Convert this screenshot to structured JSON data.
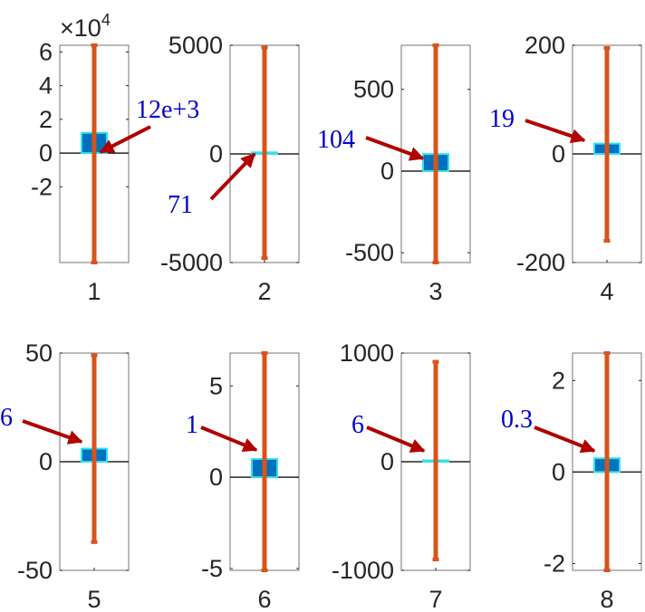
{
  "chart_data": [
    {
      "type": "bar",
      "panel": 1,
      "xlabel": "1",
      "bar_value": 12000,
      "annotation": "12e+3",
      "error_low": -65000,
      "error_high": 64000,
      "ylim": [
        -65000,
        64000
      ],
      "yticks": [
        -20000,
        0,
        20000,
        40000,
        60000
      ],
      "ytick_labels": [
        "-2",
        "0",
        "2",
        "4",
        "6"
      ],
      "exponent_label": "×10^4"
    },
    {
      "type": "bar",
      "panel": 2,
      "xlabel": "2",
      "bar_value": 71,
      "annotation": "71",
      "error_low": -4800,
      "error_high": 4900,
      "ylim": [
        -5000,
        5000
      ],
      "yticks": [
        -5000,
        0,
        5000
      ],
      "ytick_labels": [
        "-5000",
        "0",
        "5000"
      ]
    },
    {
      "type": "bar",
      "panel": 3,
      "xlabel": "3",
      "bar_value": 104,
      "annotation": "104",
      "error_low": -560,
      "error_high": 770,
      "ylim": [
        -560,
        770
      ],
      "yticks": [
        -500,
        0,
        500
      ],
      "ytick_labels": [
        "-500",
        "0",
        "500"
      ]
    },
    {
      "type": "bar",
      "panel": 4,
      "xlabel": "4",
      "bar_value": 19,
      "annotation": "19",
      "error_low": -160,
      "error_high": 195,
      "ylim": [
        -200,
        200
      ],
      "yticks": [
        -200,
        0,
        200
      ],
      "ytick_labels": [
        "-200",
        "0",
        "200"
      ]
    },
    {
      "type": "bar",
      "panel": 5,
      "xlabel": "5",
      "bar_value": 6,
      "annotation": "6",
      "error_low": -37,
      "error_high": 49,
      "ylim": [
        -50,
        50
      ],
      "yticks": [
        -50,
        0,
        50
      ],
      "ytick_labels": [
        "-50",
        "0",
        "50"
      ]
    },
    {
      "type": "bar",
      "panel": 6,
      "xlabel": "6",
      "bar_value": 1,
      "annotation": "1",
      "error_low": -5.1,
      "error_high": 6.8,
      "ylim": [
        -5.1,
        6.8
      ],
      "yticks": [
        -5,
        0,
        5
      ],
      "ytick_labels": [
        "-5",
        "0",
        "5"
      ]
    },
    {
      "type": "bar",
      "panel": 7,
      "xlabel": "7",
      "bar_value": 6,
      "annotation": "6",
      "error_low": -900,
      "error_high": 920,
      "ylim": [
        -1000,
        1000
      ],
      "yticks": [
        -1000,
        0,
        1000
      ],
      "ytick_labels": [
        "-1000",
        "0",
        "1000"
      ]
    },
    {
      "type": "bar",
      "panel": 8,
      "xlabel": "8",
      "bar_value": 0.3,
      "annotation": "0.3",
      "error_low": -2.15,
      "error_high": 2.6,
      "ylim": [
        -2.15,
        2.6
      ],
      "yticks": [
        -2,
        0,
        2
      ],
      "ytick_labels": [
        "-2",
        "0",
        "2"
      ]
    }
  ],
  "colors": {
    "bar_fill": "#0072bd",
    "bar_edge": "#33e0f0",
    "errorbar": "#d95319",
    "arrow": "#b00000",
    "annotation_text": "#0000cc",
    "axis": "#262626",
    "box": "#262626"
  }
}
